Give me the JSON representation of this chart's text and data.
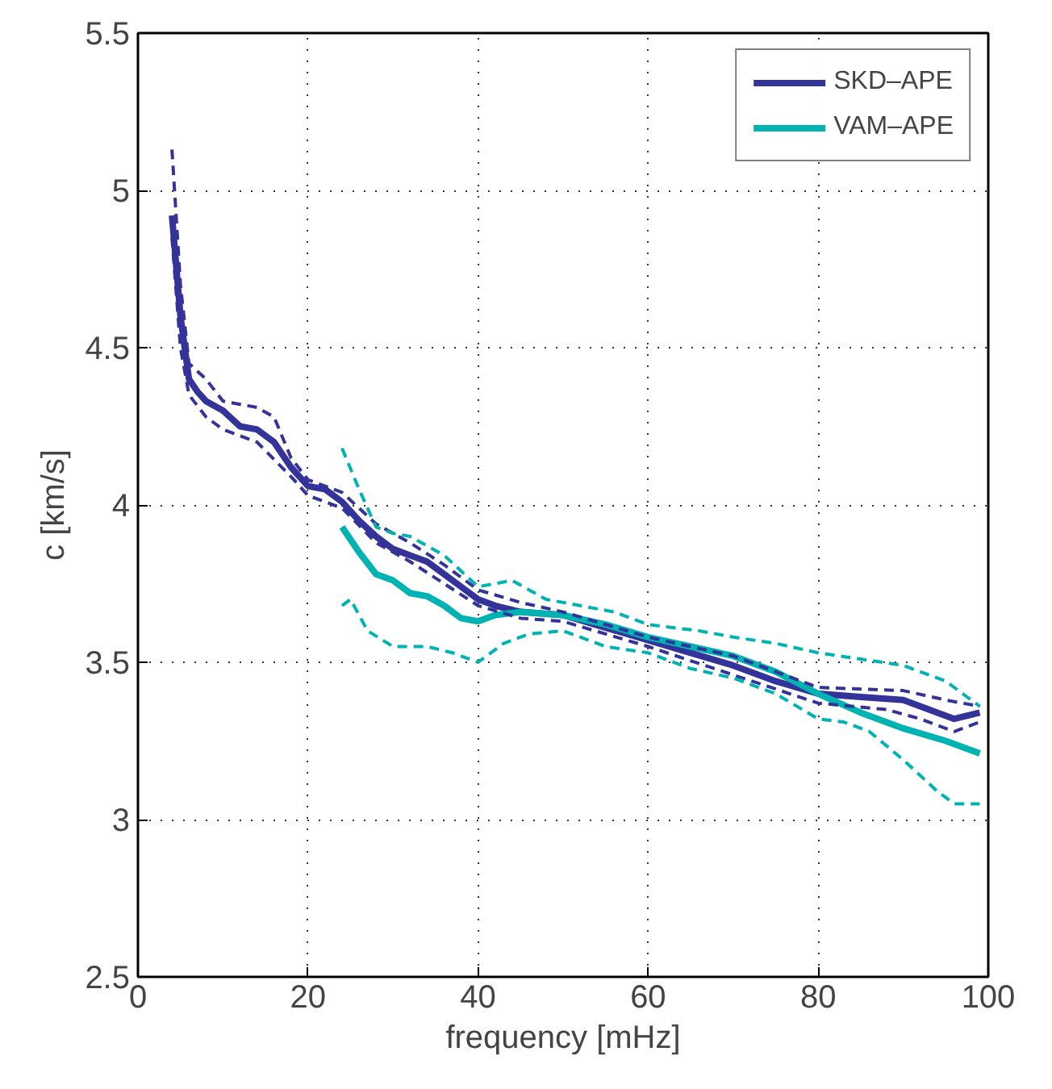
{
  "chart_data": {
    "type": "line",
    "xlabel": "frequency [mHz]",
    "ylabel": "c [km/s]",
    "xlim": [
      0,
      100
    ],
    "ylim": [
      2.5,
      5.5
    ],
    "xticks": [
      0,
      20,
      40,
      60,
      80,
      100
    ],
    "yticks": [
      2.5,
      3,
      3.5,
      4,
      4.5,
      5,
      5.5
    ],
    "grid": true,
    "legend": "top right",
    "marker": "none",
    "series": [
      {
        "name": "SKD–APE",
        "color": "#333399",
        "line_style": "solid",
        "x": [
          4,
          5,
          6,
          7,
          8,
          10,
          12,
          14,
          16,
          18,
          20,
          22,
          24,
          26,
          28,
          30,
          32,
          34,
          36,
          38,
          40,
          42,
          45,
          50,
          55,
          60,
          65,
          70,
          75,
          80,
          85,
          90,
          93,
          96,
          99
        ],
        "values": [
          4.92,
          4.6,
          4.4,
          4.36,
          4.33,
          4.3,
          4.25,
          4.24,
          4.2,
          4.12,
          4.06,
          4.05,
          4.01,
          3.95,
          3.9,
          3.86,
          3.84,
          3.82,
          3.78,
          3.74,
          3.7,
          3.68,
          3.66,
          3.65,
          3.61,
          3.57,
          3.53,
          3.49,
          3.44,
          3.4,
          3.39,
          3.38,
          3.35,
          3.32,
          3.34
        ]
      },
      {
        "name": "VAM–APE",
        "color": "#00b3b3",
        "line_style": "solid",
        "x": [
          24,
          26,
          28,
          30,
          32,
          34,
          36,
          38,
          40,
          42,
          45,
          50,
          55,
          60,
          65,
          70,
          75,
          80,
          85,
          90,
          95,
          99
        ],
        "values": [
          3.93,
          3.85,
          3.78,
          3.76,
          3.72,
          3.71,
          3.68,
          3.64,
          3.63,
          3.65,
          3.66,
          3.65,
          3.62,
          3.58,
          3.55,
          3.52,
          3.47,
          3.4,
          3.34,
          3.29,
          3.25,
          3.21
        ]
      },
      {
        "color": "#333399",
        "line_style": "dashed",
        "x": [
          4,
          5,
          6,
          8,
          10,
          14,
          16,
          18,
          20,
          24,
          28,
          32,
          36,
          40,
          45,
          50,
          60,
          70,
          80,
          90,
          95,
          99
        ],
        "values": [
          5.13,
          4.7,
          4.45,
          4.4,
          4.33,
          4.31,
          4.28,
          4.15,
          4.08,
          4.04,
          3.94,
          3.88,
          3.81,
          3.73,
          3.69,
          3.66,
          3.58,
          3.52,
          3.42,
          3.41,
          3.38,
          3.36
        ]
      },
      {
        "color": "#333399",
        "line_style": "dashed",
        "x": [
          4,
          5,
          6,
          8,
          10,
          14,
          18,
          20,
          24,
          28,
          32,
          36,
          40,
          45,
          50,
          60,
          70,
          80,
          88,
          92,
          96,
          99
        ],
        "values": [
          4.85,
          4.5,
          4.35,
          4.28,
          4.24,
          4.2,
          4.09,
          4.03,
          3.99,
          3.88,
          3.82,
          3.75,
          3.68,
          3.64,
          3.63,
          3.55,
          3.46,
          3.37,
          3.35,
          3.32,
          3.28,
          3.31
        ]
      },
      {
        "color": "#00b3b3",
        "line_style": "dashed",
        "x": [
          24,
          26,
          28,
          30,
          32,
          36,
          40,
          44,
          48,
          52,
          56,
          60,
          66,
          70,
          75,
          80,
          85,
          90,
          95,
          99
        ],
        "values": [
          4.18,
          4.05,
          3.93,
          3.91,
          3.9,
          3.84,
          3.74,
          3.76,
          3.7,
          3.68,
          3.66,
          3.62,
          3.6,
          3.58,
          3.56,
          3.53,
          3.51,
          3.49,
          3.44,
          3.36
        ]
      },
      {
        "color": "#00b3b3",
        "line_style": "dashed",
        "x": [
          24,
          25,
          27,
          30,
          34,
          37,
          40,
          43,
          46,
          50,
          55,
          60,
          65,
          70,
          75,
          80,
          83,
          86,
          90,
          94,
          96,
          99
        ],
        "values": [
          3.68,
          3.7,
          3.6,
          3.55,
          3.55,
          3.53,
          3.5,
          3.56,
          3.59,
          3.6,
          3.55,
          3.53,
          3.48,
          3.45,
          3.4,
          3.32,
          3.31,
          3.28,
          3.19,
          3.09,
          3.05,
          3.05
        ]
      }
    ]
  }
}
